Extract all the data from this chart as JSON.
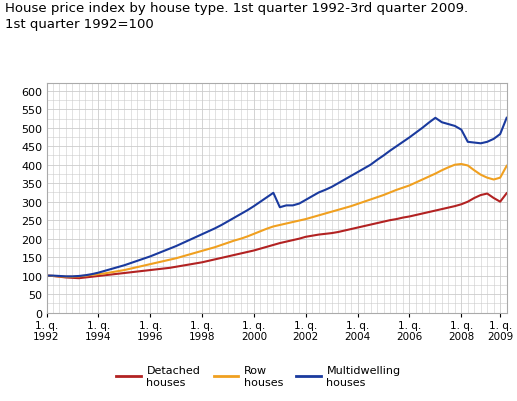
{
  "title_line1": "House price index by house type. 1st quarter 1992-3rd quarter 2009.",
  "title_line2": "1st quarter 1992=100",
  "title_fontsize": 9.5,
  "ylim": [
    0,
    620
  ],
  "yticks": [
    0,
    50,
    100,
    150,
    200,
    250,
    300,
    350,
    400,
    450,
    500,
    550,
    600
  ],
  "background_color": "#ffffff",
  "grid_color": "#cccccc",
  "legend_labels": [
    "Detached\nhouses",
    "Row\nhouses",
    "Multidwelling\nhouses"
  ],
  "colors": [
    "#b22222",
    "#f0a020",
    "#1a3a9e"
  ],
  "xtick_labels": [
    "1. q.\n1992",
    "1. q.\n1994",
    "1. q.\n1996",
    "1. q.\n1998",
    "1. q.\n2000",
    "1. q.\n2002",
    "1. q.\n2004",
    "1. q.\n2006",
    "1. q.\n2008",
    "1. q.\n2009"
  ],
  "xtick_positions": [
    0,
    8,
    16,
    24,
    32,
    40,
    48,
    56,
    64,
    70
  ],
  "detached": [
    100,
    99,
    97,
    95,
    94,
    93,
    95,
    97,
    99,
    101,
    103,
    105,
    107,
    109,
    111,
    113,
    115,
    117,
    119,
    121,
    124,
    127,
    130,
    133,
    136,
    140,
    144,
    148,
    152,
    156,
    160,
    164,
    168,
    173,
    178,
    183,
    188,
    192,
    196,
    200,
    205,
    208,
    211,
    213,
    215,
    218,
    222,
    226,
    230,
    234,
    238,
    242,
    246,
    250,
    253,
    257,
    260,
    264,
    268,
    272,
    276,
    280,
    284,
    288,
    293,
    300,
    310,
    318,
    322,
    310,
    300,
    323
  ],
  "row": [
    100,
    99,
    98,
    97,
    97,
    98,
    100,
    102,
    104,
    106,
    109,
    112,
    115,
    119,
    123,
    127,
    131,
    135,
    139,
    143,
    147,
    152,
    157,
    162,
    167,
    172,
    177,
    183,
    189,
    195,
    200,
    206,
    213,
    220,
    227,
    233,
    237,
    241,
    245,
    249,
    253,
    258,
    263,
    268,
    273,
    278,
    283,
    288,
    294,
    300,
    306,
    312,
    318,
    325,
    332,
    338,
    344,
    352,
    360,
    368,
    376,
    385,
    393,
    400,
    402,
    398,
    385,
    373,
    365,
    360,
    365,
    397
  ],
  "multi": [
    100,
    100,
    99,
    98,
    98,
    99,
    101,
    104,
    108,
    113,
    118,
    123,
    128,
    134,
    140,
    146,
    152,
    159,
    166,
    173,
    180,
    188,
    196,
    204,
    212,
    220,
    228,
    237,
    247,
    257,
    267,
    277,
    288,
    300,
    312,
    324,
    285,
    290,
    290,
    295,
    305,
    315,
    325,
    332,
    340,
    350,
    360,
    370,
    380,
    390,
    400,
    413,
    425,
    438,
    450,
    462,
    474,
    487,
    500,
    514,
    527,
    515,
    510,
    505,
    495,
    462,
    460,
    458,
    462,
    470,
    483,
    527
  ]
}
